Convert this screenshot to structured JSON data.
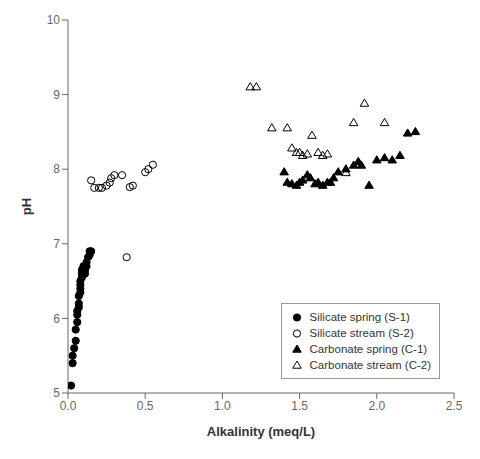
{
  "chart_data": {
    "type": "scatter",
    "xlabel": "Alkalinity (meq/L)",
    "ylabel": "pH",
    "xlim": [
      0,
      2.5
    ],
    "ylim": [
      5.0,
      10.0
    ],
    "xticks": [
      {
        "value": 0.0,
        "label": "0.0"
      },
      0.5,
      {
        "value": 1.0,
        "label": "1.0"
      },
      1.5,
      {
        "value": 2.0,
        "label": "2.0"
      },
      2.5
    ],
    "yticks": [
      5,
      6,
      7,
      8,
      9,
      10
    ],
    "grid": false,
    "legend": "lower right",
    "series": [
      {
        "name": "Silicate spring (S-1)",
        "color": "#000000",
        "marker": "circle",
        "x": [
          0.02,
          0.03,
          0.03,
          0.04,
          0.05,
          0.05,
          0.06,
          0.06,
          0.06,
          0.07,
          0.07,
          0.07,
          0.08,
          0.08,
          0.08,
          0.08,
          0.09,
          0.09,
          0.09,
          0.1,
          0.1,
          0.1,
          0.11,
          0.11,
          0.12,
          0.12,
          0.13,
          0.14,
          0.14,
          0.15
        ],
        "values": [
          5.1,
          5.4,
          5.5,
          5.6,
          5.7,
          5.85,
          5.95,
          6.05,
          6.1,
          6.15,
          6.2,
          6.3,
          6.35,
          6.4,
          6.45,
          6.5,
          6.55,
          6.6,
          6.65,
          6.6,
          6.65,
          6.7,
          6.6,
          6.65,
          6.7,
          6.75,
          6.82,
          6.85,
          6.9,
          6.9
        ]
      },
      {
        "name": "Silicate stream (S-2)",
        "color": "#000000",
        "marker": "circle_open",
        "x": [
          0.15,
          0.17,
          0.2,
          0.22,
          0.25,
          0.27,
          0.28,
          0.3,
          0.35,
          0.4,
          0.42,
          0.5,
          0.52,
          0.55,
          0.38
        ],
        "values": [
          7.85,
          7.75,
          7.75,
          7.75,
          7.78,
          7.82,
          7.88,
          7.92,
          7.92,
          7.76,
          7.78,
          7.96,
          8.0,
          8.06,
          6.82
        ]
      },
      {
        "name": "Carbonate spring (C-1)",
        "color": "#000000",
        "marker": "triangle",
        "x": [
          1.4,
          1.42,
          1.45,
          1.48,
          1.5,
          1.52,
          1.55,
          1.57,
          1.6,
          1.62,
          1.65,
          1.68,
          1.7,
          1.72,
          1.75,
          1.8,
          1.85,
          1.88,
          1.9,
          1.95,
          2.0,
          2.05,
          2.1,
          2.15,
          2.2,
          2.25
        ],
        "values": [
          7.96,
          7.82,
          7.8,
          7.78,
          7.82,
          7.85,
          7.92,
          7.88,
          7.8,
          7.82,
          7.78,
          7.82,
          7.82,
          7.88,
          7.96,
          8.0,
          8.05,
          8.1,
          8.05,
          7.78,
          8.12,
          8.15,
          8.12,
          8.18,
          8.48,
          8.5
        ]
      },
      {
        "name": "Carbonate stream (C-2)",
        "color": "#000000",
        "marker": "triangle_open",
        "x": [
          1.18,
          1.22,
          1.32,
          1.42,
          1.45,
          1.48,
          1.5,
          1.52,
          1.55,
          1.58,
          1.62,
          1.65,
          1.68,
          1.8,
          1.85,
          1.92,
          2.05
        ],
        "values": [
          9.1,
          9.1,
          8.55,
          8.55,
          8.28,
          8.22,
          8.22,
          8.18,
          8.2,
          8.45,
          8.22,
          8.18,
          8.2,
          7.95,
          8.62,
          8.88,
          8.62
        ]
      }
    ]
  }
}
